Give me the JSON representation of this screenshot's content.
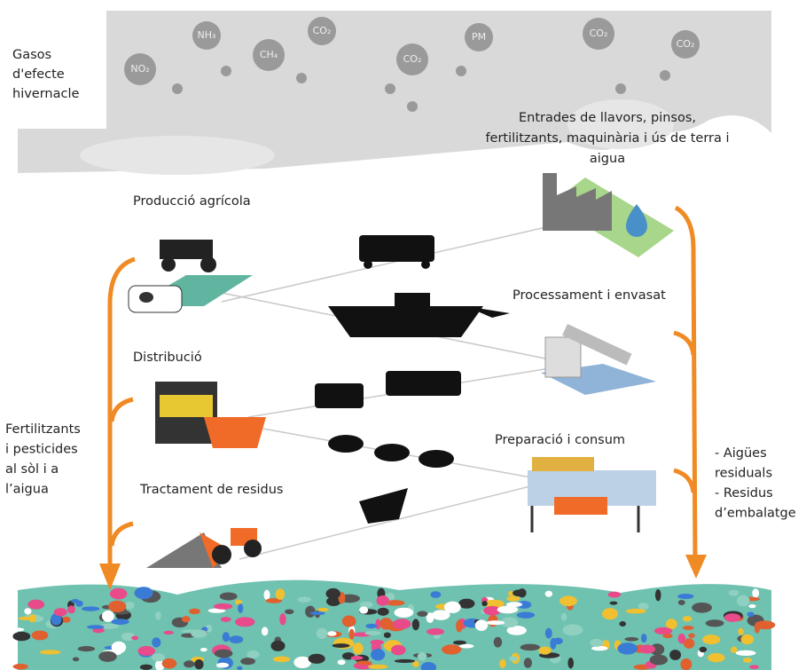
{
  "gases": {
    "label": [
      "Gasos",
      "d'efecte",
      "hivernacle"
    ],
    "bubbles": [
      "NO₂",
      "NH₃",
      "CH₄",
      "CO₂",
      "CO₂",
      "PM",
      "CO₂",
      "CO₂"
    ]
  },
  "nodes": [
    {
      "label": [
        "Entrades de llavors, pinsos,",
        "fertilitzants, maquinària i ús de terra i",
        "aigua"
      ]
    },
    {
      "label": [
        "Producció agrícola"
      ]
    },
    {
      "label": [
        "Processament i envasat"
      ]
    },
    {
      "label": [
        "Distribució"
      ]
    },
    {
      "label": [
        "Preparació i consum"
      ]
    },
    {
      "label": [
        "Tractament de residus"
      ]
    }
  ],
  "flows": [
    {
      "label": [
        "Fertilitzants",
        "i pesticides",
        "al sòl i a",
        "l’aigua"
      ]
    },
    {
      "label": [
        "- Aigües",
        "residuals",
        "- Residus",
        "d’embalatge"
      ]
    }
  ]
}
